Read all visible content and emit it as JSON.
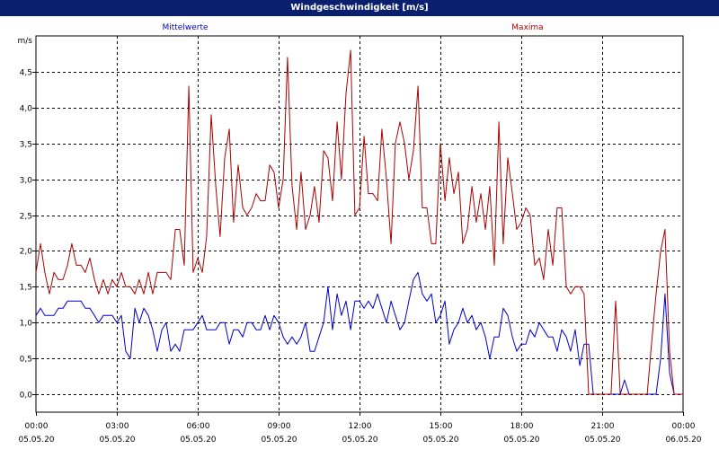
{
  "window": {
    "title": "Windgeschwindigkeit [m/s]"
  },
  "colors": {
    "titlebar": "#0a1f6e",
    "mittel": "#0000cc",
    "maxima": "#aa0000",
    "grid": "#000000"
  },
  "chart_data": {
    "type": "line",
    "title": "Windgeschwindigkeit [m/s]",
    "ylabel": "m/s",
    "xlabel": "",
    "ylim": [
      -0.25,
      5.0
    ],
    "yticks": [
      "0,0",
      "0,5",
      "1,0",
      "1,5",
      "2,0",
      "2,5",
      "3,0",
      "3,5",
      "4,0",
      "4,5"
    ],
    "ytick_values": [
      0.0,
      0.5,
      1.0,
      1.5,
      2.0,
      2.5,
      3.0,
      3.5,
      4.0,
      4.5
    ],
    "xticks": [
      {
        "time": "00:00",
        "date": "05.05.20"
      },
      {
        "time": "03:00",
        "date": "05.05.20"
      },
      {
        "time": "06:00",
        "date": "05.05.20"
      },
      {
        "time": "09:00",
        "date": "05.05.20"
      },
      {
        "time": "12:00",
        "date": "05.05.20"
      },
      {
        "time": "15:00",
        "date": "05.05.20"
      },
      {
        "time": "18:00",
        "date": "05.05.20"
      },
      {
        "time": "21:00",
        "date": "05.05.20"
      },
      {
        "time": "00:00",
        "date": "06.05.20"
      }
    ],
    "grid": true,
    "x_unit": "hours",
    "xlim": [
      0,
      24
    ],
    "series": [
      {
        "name": "Mittelwerte",
        "color": "#0000cc",
        "x": [
          0,
          0.17,
          0.33,
          0.5,
          0.67,
          0.83,
          1,
          1.17,
          1.33,
          1.5,
          1.67,
          1.83,
          2,
          2.17,
          2.33,
          2.5,
          2.67,
          2.83,
          3,
          3.17,
          3.33,
          3.5,
          3.67,
          3.83,
          4,
          4.17,
          4.33,
          4.5,
          4.67,
          4.83,
          5,
          5.17,
          5.33,
          5.5,
          5.67,
          5.83,
          6,
          6.17,
          6.33,
          6.5,
          6.67,
          6.83,
          7,
          7.17,
          7.33,
          7.5,
          7.67,
          7.83,
          8,
          8.17,
          8.33,
          8.5,
          8.67,
          8.83,
          9,
          9.17,
          9.33,
          9.5,
          9.67,
          9.83,
          10,
          10.17,
          10.33,
          10.5,
          10.67,
          10.83,
          11,
          11.17,
          11.33,
          11.5,
          11.67,
          11.83,
          12,
          12.17,
          12.33,
          12.5,
          12.67,
          12.83,
          13,
          13.17,
          13.33,
          13.5,
          13.67,
          13.83,
          14,
          14.17,
          14.33,
          14.5,
          14.67,
          14.83,
          15,
          15.17,
          15.33,
          15.5,
          15.67,
          15.83,
          16,
          16.17,
          16.33,
          16.5,
          16.67,
          16.83,
          17,
          17.17,
          17.33,
          17.5,
          17.67,
          17.83,
          18,
          18.17,
          18.33,
          18.5,
          18.67,
          18.83,
          19,
          19.17,
          19.33,
          19.5,
          19.67,
          19.83,
          20,
          20.17,
          20.33,
          20.5,
          20.67,
          20.83,
          21,
          21.17,
          21.33,
          21.5,
          21.67,
          21.83,
          22,
          22.17,
          22.33,
          22.5,
          22.67,
          22.83,
          23,
          23.17,
          23.33,
          23.5,
          23.67,
          23.83,
          24
        ],
        "values": [
          1.1,
          1.2,
          1.1,
          1.1,
          1.1,
          1.2,
          1.2,
          1.3,
          1.3,
          1.3,
          1.3,
          1.2,
          1.2,
          1.1,
          1.0,
          1.1,
          1.1,
          1.1,
          1.0,
          1.1,
          0.6,
          0.5,
          1.2,
          1.0,
          1.2,
          1.1,
          0.9,
          0.6,
          0.9,
          1.0,
          0.6,
          0.7,
          0.6,
          0.9,
          0.9,
          0.9,
          1.0,
          1.1,
          0.9,
          0.9,
          0.9,
          1.0,
          1.0,
          0.7,
          0.9,
          0.9,
          0.8,
          1.0,
          1.0,
          0.9,
          0.9,
          1.1,
          0.9,
          1.1,
          1.0,
          0.8,
          0.7,
          0.8,
          0.7,
          0.8,
          1.0,
          0.6,
          0.6,
          0.8,
          1.0,
          1.5,
          0.9,
          1.4,
          1.1,
          1.3,
          0.9,
          1.3,
          1.3,
          1.2,
          1.3,
          1.2,
          1.4,
          1.2,
          1.0,
          1.3,
          1.1,
          0.9,
          1.0,
          1.3,
          1.6,
          1.7,
          1.4,
          1.3,
          1.4,
          1.0,
          1.1,
          1.3,
          0.7,
          0.9,
          1.0,
          1.2,
          1.0,
          1.1,
          0.9,
          1.0,
          0.8,
          0.5,
          0.8,
          0.8,
          1.2,
          1.1,
          0.8,
          0.6,
          0.7,
          0.7,
          0.9,
          0.8,
          1.0,
          0.9,
          0.8,
          0.8,
          0.6,
          0.9,
          0.8,
          0.6,
          0.9,
          0.4,
          0.7,
          0.7,
          0.0,
          0.0,
          0.0,
          0.0,
          0.0,
          0.0,
          0.0,
          0.2,
          0.0,
          0.0,
          0.0,
          0.0,
          0.0,
          0.0,
          0.0,
          0.5,
          1.4,
          0.3,
          0.0,
          0.0,
          0.0
        ]
      },
      {
        "name": "Maxima",
        "color": "#aa0000",
        "x": [
          0,
          0.17,
          0.33,
          0.5,
          0.67,
          0.83,
          1,
          1.17,
          1.33,
          1.5,
          1.67,
          1.83,
          2,
          2.17,
          2.33,
          2.5,
          2.67,
          2.83,
          3,
          3.17,
          3.33,
          3.5,
          3.67,
          3.83,
          4,
          4.17,
          4.33,
          4.5,
          4.67,
          4.83,
          5,
          5.17,
          5.33,
          5.5,
          5.67,
          5.83,
          6,
          6.17,
          6.33,
          6.5,
          6.67,
          6.83,
          7,
          7.17,
          7.33,
          7.5,
          7.67,
          7.83,
          8,
          8.17,
          8.33,
          8.5,
          8.67,
          8.83,
          9,
          9.17,
          9.33,
          9.5,
          9.67,
          9.83,
          10,
          10.17,
          10.33,
          10.5,
          10.67,
          10.83,
          11,
          11.17,
          11.33,
          11.5,
          11.67,
          11.83,
          12,
          12.17,
          12.33,
          12.5,
          12.67,
          12.83,
          13,
          13.17,
          13.33,
          13.5,
          13.67,
          13.83,
          14,
          14.17,
          14.33,
          14.5,
          14.67,
          14.83,
          15,
          15.17,
          15.33,
          15.5,
          15.67,
          15.83,
          16,
          16.17,
          16.33,
          16.5,
          16.67,
          16.83,
          17,
          17.17,
          17.33,
          17.5,
          17.67,
          17.83,
          18,
          18.17,
          18.33,
          18.5,
          18.67,
          18.83,
          19,
          19.17,
          19.33,
          19.5,
          19.67,
          19.83,
          20,
          20.17,
          20.33,
          20.5,
          20.67,
          20.83,
          21,
          21.17,
          21.33,
          21.5,
          21.67,
          21.83,
          22,
          22.17,
          22.33,
          22.5,
          22.67,
          22.83,
          23,
          23.17,
          23.33,
          23.5,
          23.67,
          23.83,
          24
        ],
        "values": [
          1.7,
          2.1,
          1.7,
          1.4,
          1.7,
          1.6,
          1.6,
          1.8,
          2.1,
          1.8,
          1.8,
          1.7,
          1.9,
          1.6,
          1.4,
          1.6,
          1.4,
          1.6,
          1.5,
          1.7,
          1.5,
          1.5,
          1.4,
          1.6,
          1.4,
          1.7,
          1.4,
          1.7,
          1.7,
          1.7,
          1.6,
          2.3,
          2.3,
          1.8,
          4.3,
          1.7,
          1.9,
          1.7,
          2.2,
          3.9,
          2.9,
          2.2,
          3.3,
          3.7,
          2.4,
          3.2,
          2.6,
          2.5,
          2.6,
          2.8,
          2.7,
          2.7,
          3.2,
          3.1,
          2.6,
          3.0,
          4.7,
          2.9,
          2.3,
          3.1,
          2.3,
          2.5,
          2.9,
          2.4,
          3.4,
          3.3,
          2.7,
          3.8,
          3.0,
          4.2,
          4.8,
          2.5,
          2.6,
          3.6,
          2.8,
          2.8,
          2.7,
          3.7,
          3.0,
          2.1,
          3.5,
          3.8,
          3.5,
          3.0,
          3.4,
          4.3,
          2.6,
          2.6,
          2.1,
          2.1,
          3.5,
          2.7,
          3.3,
          2.8,
          3.1,
          2.1,
          2.3,
          2.9,
          2.4,
          2.8,
          2.3,
          2.9,
          1.8,
          3.8,
          2.1,
          3.3,
          2.8,
          2.3,
          2.4,
          2.6,
          2.5,
          1.8,
          1.9,
          1.6,
          2.3,
          1.8,
          2.6,
          2.6,
          1.5,
          1.4,
          1.5,
          1.5,
          1.4,
          0.0,
          0.0,
          0.0,
          0.0,
          0.0,
          0.0,
          1.3,
          0.0,
          0.0,
          0.0,
          0.0,
          0.0,
          0.0,
          0.0,
          0.7,
          1.4,
          2.0,
          2.3,
          0.6,
          0.0,
          0.0,
          0.0
        ]
      }
    ]
  }
}
